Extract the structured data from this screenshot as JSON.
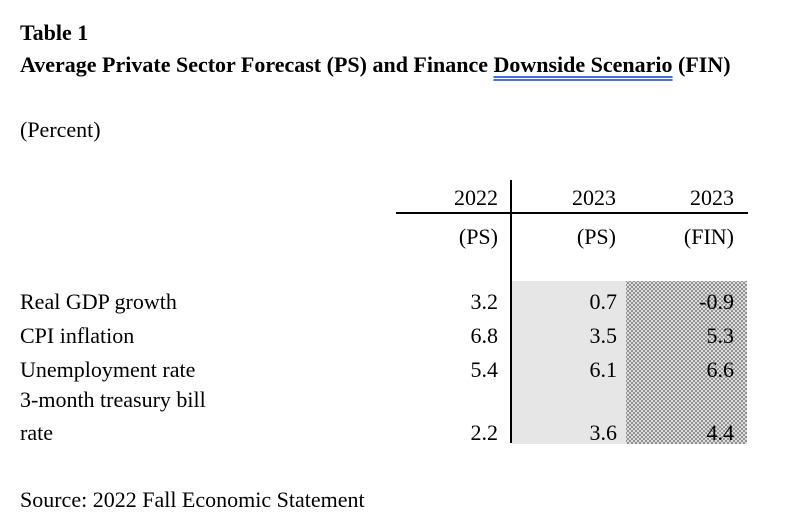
{
  "table": {
    "label": "Table 1",
    "title_part1": "Average Private Sector Forecast (PS) and Finance ",
    "title_underlined": "Downside Scenario",
    "title_part2": " (FIN)",
    "units": "(Percent)",
    "columns": [
      {
        "year": "2022",
        "series": "(PS)"
      },
      {
        "year": "2023",
        "series": "(PS)"
      },
      {
        "year": "2023",
        "series": "(FIN)"
      }
    ],
    "rows": [
      {
        "label": "Real GDP growth",
        "values": [
          "3.2",
          "0.7",
          "-0.9"
        ]
      },
      {
        "label": "CPI inflation",
        "values": [
          "6.8",
          "3.5",
          "5.3"
        ]
      },
      {
        "label": "Unemployment rate",
        "values": [
          "5.4",
          "6.1",
          "6.6"
        ]
      },
      {
        "label_line1": "3-month treasury bill",
        "label_line2": "rate",
        "values": [
          "2.2",
          "3.6",
          "4.4"
        ]
      }
    ],
    "source": "Source: 2022 Fall Economic Statement"
  }
}
